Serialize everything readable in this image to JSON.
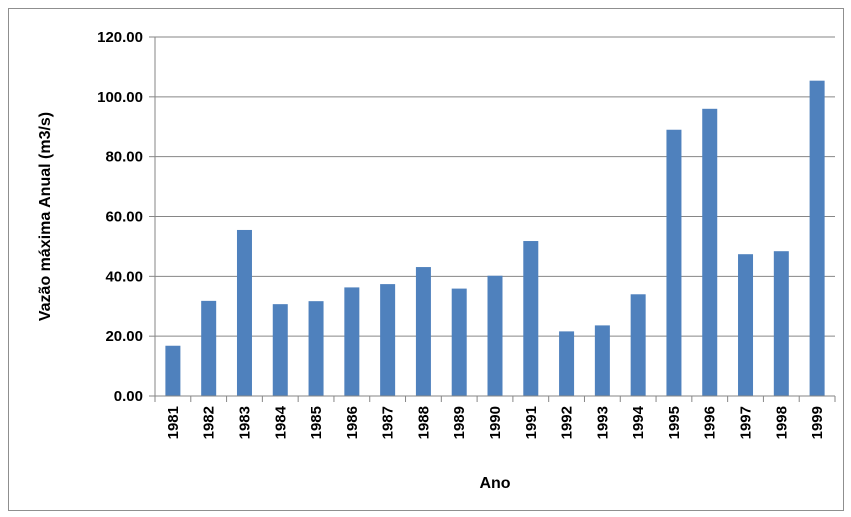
{
  "chart_data": {
    "type": "bar",
    "title": "",
    "xlabel": "Ano",
    "ylabel": "Vazão máxima Anual (m3/s)",
    "categories": [
      "1981",
      "1982",
      "1983",
      "1984",
      "1985",
      "1986",
      "1987",
      "1988",
      "1989",
      "1990",
      "1991",
      "1992",
      "1993",
      "1994",
      "1995",
      "1996",
      "1997",
      "1998",
      "1999"
    ],
    "values": [
      16.8,
      31.8,
      55.5,
      30.7,
      31.7,
      36.3,
      37.4,
      43.1,
      35.9,
      40.2,
      51.8,
      21.6,
      23.6,
      34.0,
      89.0,
      96.0,
      47.4,
      48.4,
      105.4
    ],
    "ylim": [
      0,
      120
    ],
    "yticks": [
      "0.00",
      "20.00",
      "40.00",
      "60.00",
      "80.00",
      "100.00",
      "120.00"
    ],
    "bar_color": "#4F81BD",
    "grid": true,
    "legend": "none"
  }
}
